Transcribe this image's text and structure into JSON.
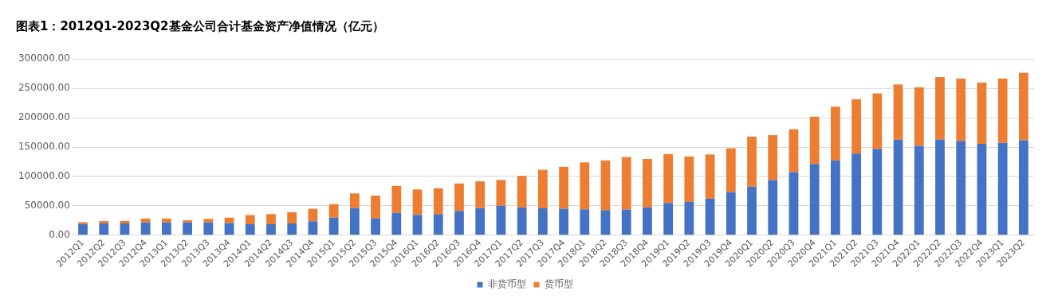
{
  "chart_data": {
    "type": "bar",
    "title": "图表1：2012Q1-2023Q2基金公司合计基金资产净值情况（亿元）",
    "stacked": true,
    "grid": "y",
    "legend": "bottom",
    "categories": [
      "2012Q1",
      "2012Q2",
      "2012Q3",
      "2012Q4",
      "2013Q1",
      "2013Q2",
      "2013Q3",
      "2013Q4",
      "2014Q1",
      "2014Q2",
      "2014Q3",
      "2014Q4",
      "2015Q1",
      "2015Q2",
      "2015Q3",
      "2015Q4",
      "2016Q1",
      "2016Q2",
      "2016Q3",
      "2016Q4",
      "2017Q1",
      "2017Q2",
      "2017Q3",
      "2017Q4",
      "2018Q1",
      "2018Q2",
      "2018Q3",
      "2018Q4",
      "2019Q1",
      "2019Q2",
      "2019Q3",
      "2019Q4",
      "2020Q1",
      "2020Q2",
      "2020Q3",
      "2020Q4",
      "2021Q1",
      "2021Q2",
      "2021Q3",
      "2021Q4",
      "2022Q1",
      "2022Q2",
      "2022Q3",
      "2022Q4",
      "2023Q1",
      "2023Q2"
    ],
    "ylim": [
      0,
      300000
    ],
    "yticks": [
      {
        "value": 0,
        "label": "0.00"
      },
      {
        "value": 50000,
        "label": "50000.00"
      },
      {
        "value": 100000,
        "label": "100000.00"
      },
      {
        "value": 150000,
        "label": "150000.00"
      },
      {
        "value": 200000,
        "label": "200000.00"
      },
      {
        "value": 250000,
        "label": "250000.00"
      },
      {
        "value": 300000,
        "label": "300000.00"
      }
    ],
    "series": [
      {
        "name": "非货币型",
        "color": "#4472c4",
        "values": [
          18800,
          20200,
          20200,
          21600,
          21600,
          21600,
          21600,
          20700,
          18800,
          18800,
          20200,
          23600,
          29800,
          46200,
          28800,
          38000,
          34600,
          36100,
          41300,
          46200,
          50000,
          47600,
          45700,
          45200,
          44200,
          42800,
          43800,
          47600,
          54800,
          56700,
          62500,
          73600,
          82700,
          93800,
          107200,
          121200,
          127400,
          138900,
          147100,
          162500,
          151900,
          163000,
          160600,
          155300,
          157200,
          161500
        ]
      },
      {
        "name": "货币型",
        "color": "#ed7d31",
        "values": [
          3300,
          3800,
          4300,
          6800,
          6800,
          3900,
          6300,
          9100,
          15300,
          17300,
          19200,
          21600,
          23100,
          25000,
          38500,
          46100,
          43300,
          43700,
          46700,
          45600,
          44000,
          53400,
          65800,
          71200,
          79800,
          84600,
          89400,
          82200,
          83200,
          77400,
          75000,
          74500,
          85100,
          76400,
          73100,
          80700,
          91400,
          92800,
          94300,
          94200,
          100000,
          106200,
          106200,
          104800,
          109600,
          115000
        ]
      }
    ]
  }
}
